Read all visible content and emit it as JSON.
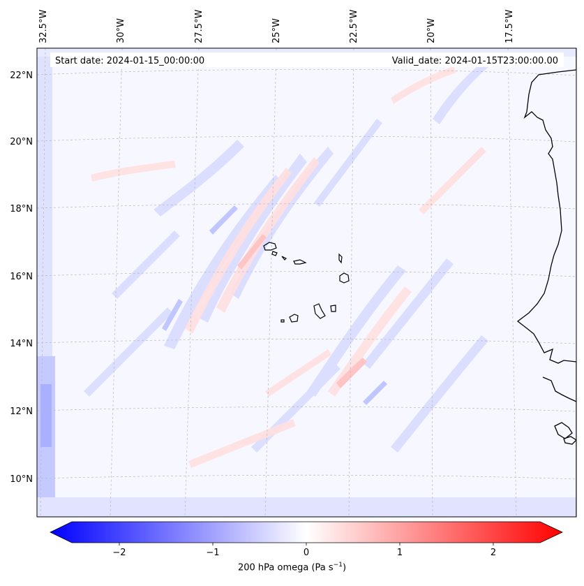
{
  "header": {
    "start_label": "Start date: 2024-01-15_00:00:00",
    "valid_label": "Valid_date: 2024-01-15T23:00:00.00"
  },
  "map": {
    "lon_labels": [
      "32.5°W",
      "30°W",
      "27.5°W",
      "25°W",
      "22.5°W",
      "20°W",
      "17.5°W"
    ],
    "lat_labels": [
      "22°N",
      "20°N",
      "18°N",
      "16°N",
      "14°N",
      "12°N",
      "10°N"
    ],
    "gridlines": "dashed"
  },
  "colorbar": {
    "ticks": [
      "−2",
      "−1",
      "0",
      "1",
      "2"
    ],
    "label_main": "200 hPa omega (Pa s",
    "label_exp": "−1",
    "label_close": ")",
    "min_color": "#0000ff",
    "mid_color": "#ffffff",
    "max_color": "#ff0000",
    "range": [
      -2.6,
      2.6
    ]
  },
  "colors": {
    "coastline": "#000000",
    "background_field": "#f6f6ff"
  }
}
